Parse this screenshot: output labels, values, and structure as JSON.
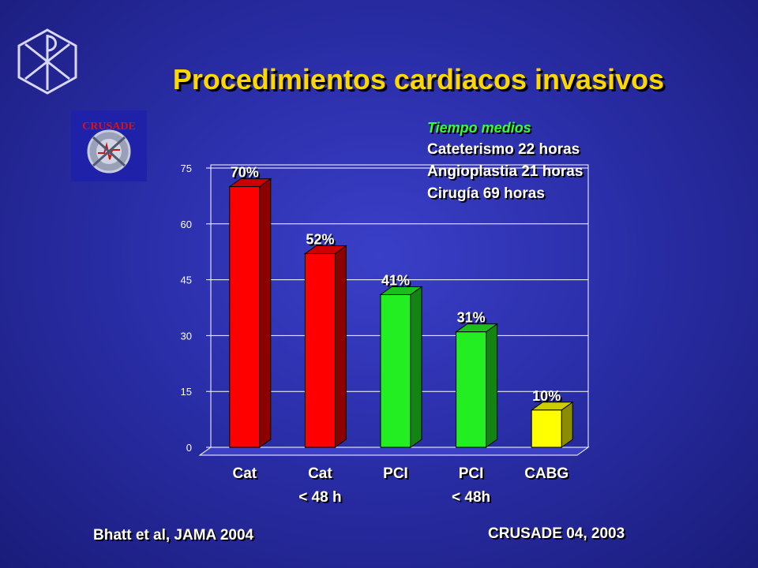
{
  "title": "Procedimientos cardiacos invasivos",
  "logo_text": "CRUSADE",
  "notes": {
    "heading": "Tiempo medios",
    "lines": [
      "Cateterismo 22 horas",
      "Angioplastia 21 horas",
      "Cirugía 69 horas"
    ]
  },
  "sources": {
    "left": "Bhatt et al, JAMA 2004",
    "right": "CRUSADE 04, 2003"
  },
  "colors": {
    "red": "#ff0000",
    "green": "#22ee22",
    "yellow": "#ffff00",
    "title": "#ffd700"
  },
  "chart_data": {
    "type": "bar",
    "categories": [
      {
        "line1": "Cat",
        "line2": ""
      },
      {
        "line1": "Cat",
        "line2": "< 48 h"
      },
      {
        "line1": "PCI",
        "line2": ""
      },
      {
        "line1": "PCI",
        "line2": "< 48h"
      },
      {
        "line1": "CABG",
        "line2": ""
      }
    ],
    "values": [
      70,
      52,
      41,
      31,
      10
    ],
    "labels": [
      "70%",
      "52%",
      "41%",
      "31%",
      "10%"
    ],
    "bar_colors": [
      "red",
      "red",
      "green",
      "green",
      "yellow"
    ],
    "ylim": [
      0,
      75
    ],
    "yticks": [
      0,
      15,
      30,
      45,
      60,
      75
    ],
    "grid": true
  }
}
